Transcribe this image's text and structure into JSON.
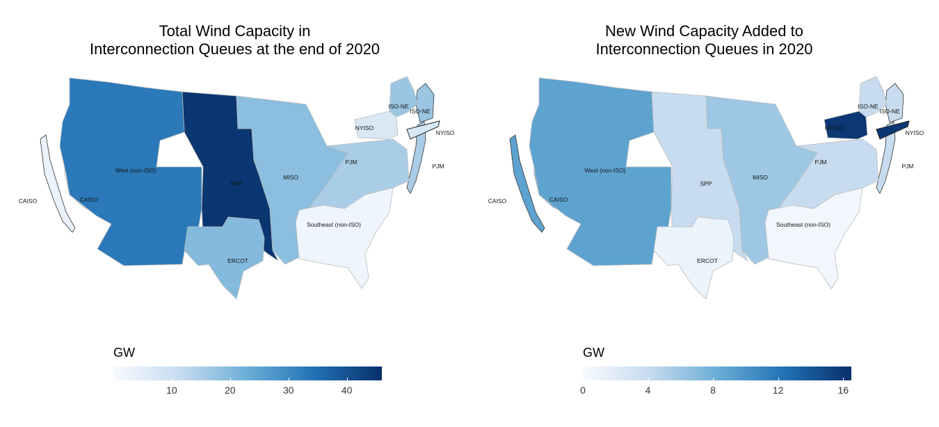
{
  "panels": [
    {
      "title_lines": [
        "Total Wind Capacity in",
        "Interconnection Queues at the end of 2020"
      ],
      "legend": {
        "title": "GW",
        "min": 0,
        "max": 46,
        "ticks": [
          10,
          20,
          30,
          40
        ]
      },
      "regions": [
        {
          "name": "CAISO",
          "value": 3
        },
        {
          "name": "West (non-ISO)",
          "value": 33
        },
        {
          "name": "SPP",
          "value": 45
        },
        {
          "name": "MISO",
          "value": 19
        },
        {
          "name": "ERCOT",
          "value": 20
        },
        {
          "name": "PJM",
          "value": 15
        },
        {
          "name": "Southeast (non-ISO)",
          "value": 2
        },
        {
          "name": "NYISO",
          "value": 7
        },
        {
          "name": "ISO-NE",
          "value": 17
        }
      ]
    },
    {
      "title_lines": [
        "New Wind Capacity Added to",
        "Interconnection Queues in 2020"
      ],
      "legend": {
        "title": "GW",
        "min": 0,
        "max": 16.5,
        "ticks": [
          0,
          4,
          8,
          12,
          16
        ]
      },
      "regions": [
        {
          "name": "CAISO",
          "value": 9
        },
        {
          "name": "West (non-ISO)",
          "value": 9
        },
        {
          "name": "SPP",
          "value": 4
        },
        {
          "name": "MISO",
          "value": 6
        },
        {
          "name": "ERCOT",
          "value": 1
        },
        {
          "name": "PJM",
          "value": 4
        },
        {
          "name": "Southeast (non-ISO)",
          "value": 0.5
        },
        {
          "name": "NYISO",
          "value": 16
        },
        {
          "name": "ISO-NE",
          "value": 4
        }
      ]
    }
  ],
  "colorscale": [
    "#f7fbff",
    "#c6dbef",
    "#6baed6",
    "#2171b5",
    "#08306b"
  ]
}
